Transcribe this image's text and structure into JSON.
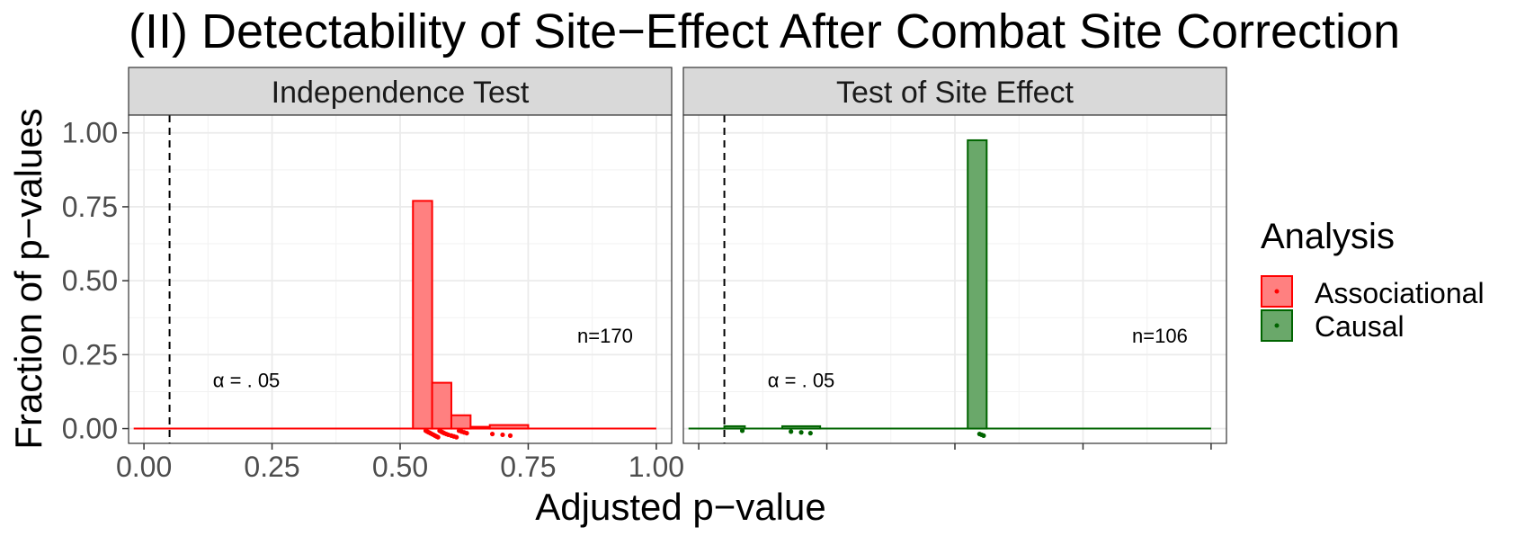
{
  "chart_data": {
    "type": "histogram",
    "title": "(II) Detectability of Site−Effect After Combat Site Correction",
    "xlabel": "Adjusted p−value",
    "ylabel": "Fraction of p−values",
    "xlim": [
      -0.03,
      1.03
    ],
    "ylim": [
      -0.05,
      1.06
    ],
    "x_ticks": [
      "0.00",
      "0.25",
      "0.50",
      "0.75",
      "1.00"
    ],
    "x_tick_values": [
      0,
      0.25,
      0.5,
      0.75,
      1.0
    ],
    "y_ticks": [
      "0.00",
      "0.25",
      "0.50",
      "0.75",
      "1.00"
    ],
    "y_tick_values": [
      0,
      0.25,
      0.5,
      0.75,
      1.0
    ],
    "grid": true,
    "alpha_line": 0.05,
    "alpha_label": "α = . 05",
    "legend": {
      "title": "Analysis",
      "position": "right",
      "entries": [
        {
          "label": "Associational",
          "color": "#ff0000",
          "fill": "#ff8080"
        },
        {
          "label": "Causal",
          "color": "#006400",
          "fill": "#6aa86a"
        }
      ]
    },
    "panels": [
      {
        "strip": "Independence Test",
        "n_label": "n=170",
        "color": "#ff0000",
        "fill": "#ff8080",
        "show_x_tick_labels": true,
        "bins": [
          {
            "x0": 0.525,
            "x1": 0.5625,
            "y": 0.77
          },
          {
            "x0": 0.5625,
            "x1": 0.6,
            "y": 0.155
          },
          {
            "x0": 0.6,
            "x1": 0.6375,
            "y": 0.045
          },
          {
            "x0": 0.6375,
            "x1": 0.675,
            "y": 0.006
          },
          {
            "x0": 0.675,
            "x1": 0.75,
            "y": 0.012
          }
        ],
        "points": [
          0.55,
          0.553,
          0.556,
          0.559,
          0.562,
          0.565,
          0.568,
          0.571,
          0.574,
          0.577,
          0.58,
          0.583,
          0.586,
          0.59,
          0.594,
          0.6,
          0.605,
          0.61,
          0.615,
          0.62,
          0.625,
          0.63,
          0.68,
          0.7,
          0.715
        ]
      },
      {
        "strip": "Test of Site Effect",
        "n_label": "n=106",
        "color": "#006400",
        "fill": "#6aa86a",
        "show_x_tick_labels": false,
        "bins": [
          {
            "x0": 0.05,
            "x1": 0.09,
            "y": 0.008
          },
          {
            "x0": 0.163,
            "x1": 0.237,
            "y": 0.008
          },
          {
            "x0": 0.525,
            "x1": 0.562,
            "y": 0.975
          }
        ],
        "points": [
          0.085,
          0.18,
          0.2,
          0.218,
          0.548,
          0.552,
          0.556
        ]
      }
    ]
  }
}
